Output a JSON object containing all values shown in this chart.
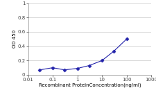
{
  "x": [
    0.03,
    0.1,
    0.3,
    1,
    3,
    10,
    30,
    100
  ],
  "y": [
    0.07,
    0.1,
    0.07,
    0.09,
    0.13,
    0.2,
    0.33,
    0.5
  ],
  "xlim": [
    0.01,
    1000
  ],
  "ylim": [
    0,
    1
  ],
  "yticks": [
    0,
    0.2,
    0.4,
    0.6,
    0.8,
    1
  ],
  "ytick_labels": [
    "0",
    "0.2",
    "0.4",
    "0.6",
    "0.8",
    "1"
  ],
  "xticks": [
    0.01,
    0.1,
    1,
    10,
    100,
    1000
  ],
  "xtick_labels": [
    "0.01",
    "0.1",
    "1",
    "10",
    "100",
    "1000"
  ],
  "xlabel": "Recombinant ProteinConcentration(ng/ml)",
  "ylabel": "OD 450",
  "line_color": "#2222aa",
  "marker_color": "#2222aa",
  "marker": "D",
  "marker_size": 2.5,
  "line_width": 0.8,
  "background_color": "#ffffff",
  "grid_color": "#c8c8c8",
  "tick_fontsize": 5,
  "label_fontsize": 5
}
